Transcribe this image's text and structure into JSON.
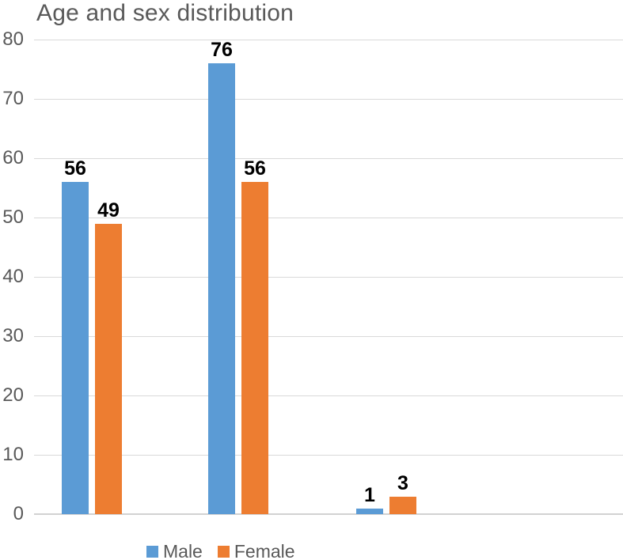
{
  "chart_data": {
    "type": "bar",
    "title": "Age and sex distribution",
    "categories": [
      "",
      "",
      ""
    ],
    "series": [
      {
        "name": "Male",
        "values": [
          56,
          76,
          1
        ],
        "color": "#5b9bd5"
      },
      {
        "name": "Female",
        "values": [
          49,
          56,
          3
        ],
        "color": "#ed7d31"
      }
    ],
    "ylim": [
      0,
      80
    ],
    "yticks": [
      0,
      10,
      20,
      30,
      40,
      50,
      60,
      70,
      80
    ],
    "xlabel": "",
    "ylabel": "",
    "grid": true,
    "legend_position": "bottom",
    "data_labels": [
      [
        56,
        76,
        1
      ],
      [
        49,
        56,
        3
      ]
    ]
  },
  "colors": {
    "gridline": "#d9d9d9",
    "axis_line": "#d2d2d2",
    "title_text": "#595959",
    "axis_text": "#595959",
    "legend_text": "#595959",
    "data_label_text": "#000000",
    "male": "#5b9bd5",
    "female": "#ed7d31"
  }
}
